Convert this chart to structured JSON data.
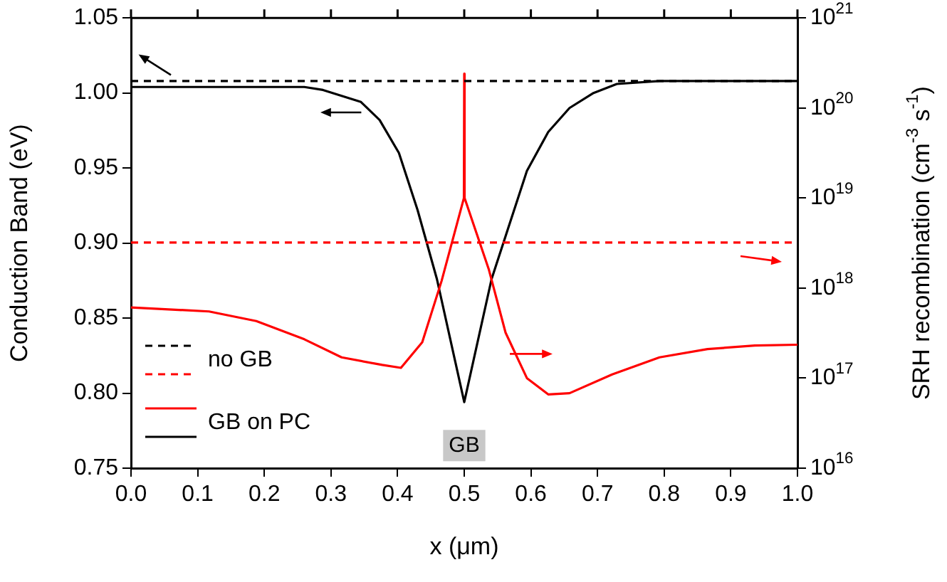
{
  "chart_data": {
    "type": "line",
    "xlabel": "x (μm)",
    "ylabel": "Conduction Band (eV)",
    "y2label": "SRH recombination (cm$^{-3}$ s$^{-1}$)",
    "xlim": [
      0,
      1
    ],
    "xticks": [
      {
        "value": 0,
        "label": "0.0"
      },
      0.1,
      0.2,
      0.3,
      0.4,
      0.5,
      0.6,
      0.7,
      0.8,
      0.9,
      {
        "value": 1,
        "label": "1.0"
      }
    ],
    "ylim": [
      0.75,
      1.05
    ],
    "yticks": [
      0.75,
      {
        "value": 0.8,
        "label": "0.80"
      },
      0.85,
      {
        "value": 0.9,
        "label": "0.90"
      },
      0.95,
      {
        "value": 1,
        "label": "1.00"
      },
      1.05
    ],
    "y2lim": [
      1e+16,
      1e+21
    ],
    "y2ticks": [
      {
        "value": 1e+16,
        "label": "10$^{16}$"
      },
      {
        "value": 1e+17,
        "label": "10$^{17}$"
      },
      {
        "value": 1e+18,
        "label": "10$^{18}$"
      },
      {
        "value": 1e+19,
        "label": "10$^{19}$"
      },
      {
        "value": 1e+20,
        "label": "10$^{20}$"
      },
      {
        "value": 1e+21,
        "label": "10$^{21}$"
      }
    ],
    "log": "y2",
    "grid": false,
    "legend": "bottom left",
    "marker": "none",
    "annotations": [
      {
        "text": "GB",
        "x": 0.5,
        "y": 0.765
      }
    ],
    "series": [
      {
        "name": "no GB",
        "color": "#000000",
        "line_style": "dashed",
        "x": [
          0,
          1
        ],
        "values": [
          1.008,
          1.008
        ]
      },
      {
        "color": "#ff0000",
        "line_style": "dashed",
        "axis": "y2",
        "x": [
          0,
          1
        ],
        "values": [
          3.2e+18,
          3.2e+18
        ]
      },
      {
        "name": "GB on PC",
        "color": "#ff0000",
        "line_style": "solid",
        "axis": "y2",
        "x": [
          0,
          0.117,
          0.188,
          0.26,
          0.316,
          0.377,
          0.405,
          0.437,
          0.466,
          0.4995,
          0.5,
          0.5005,
          0.537,
          0.562,
          0.594,
          0.626,
          0.658,
          0.722,
          0.793,
          0.865,
          0.936,
          1
        ],
        "values": [
          6.1e+17,
          5.5e+17,
          4.3e+17,
          2.7e+17,
          1.7e+17,
          1.4e+17,
          1.3e+17,
          2.5e+17,
          1.2e+18,
          1e+19,
          2.4e+20,
          1e+19,
          1.6e+18,
          3.2e+17,
          1e+17,
          6.6e+16,
          6.8e+16,
          1.1e+17,
          1.7e+17,
          2.1e+17,
          2.3e+17,
          2.35e+17
        ]
      },
      {
        "color": "#000000",
        "line_style": "solid",
        "x": [
          0,
          0.1,
          0.2,
          0.26,
          0.288,
          0.345,
          0.373,
          0.402,
          0.43,
          0.459,
          0.5,
          0.541,
          0.566,
          0.594,
          0.626,
          0.658,
          0.694,
          0.729,
          0.793,
          0.9,
          1
        ],
        "values": [
          1.004,
          1.004,
          1.004,
          1.004,
          1.002,
          0.994,
          0.982,
          0.96,
          0.922,
          0.876,
          0.794,
          0.876,
          0.91,
          0.948,
          0.974,
          0.99,
          1.0,
          1.006,
          1.008,
          1.008,
          1.008
        ]
      }
    ]
  }
}
